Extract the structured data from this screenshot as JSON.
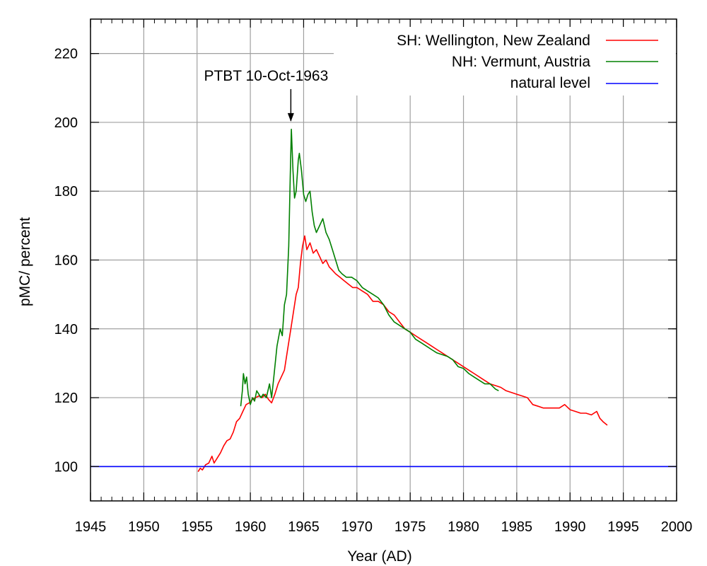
{
  "chart_data": {
    "type": "line",
    "xlabel": "Year (AD)",
    "ylabel": "pMC/ percent",
    "xlim": [
      1945,
      2000
    ],
    "ylim": [
      90,
      230
    ],
    "x_ticks": [
      1945,
      1950,
      1955,
      1960,
      1965,
      1970,
      1975,
      1980,
      1985,
      1990,
      1995,
      2000
    ],
    "y_ticks": [
      100,
      120,
      140,
      160,
      180,
      200,
      220
    ],
    "grid": true,
    "legend_position": "top-right",
    "annotation": {
      "text": "PTBT 10-Oct-1963",
      "x": 1963.8,
      "y": 200
    },
    "series": [
      {
        "name": "SH: Wellington, New Zealand",
        "color": "#ff0000",
        "points": [
          [
            1955.1,
            98.5
          ],
          [
            1955.3,
            99.5
          ],
          [
            1955.5,
            99
          ],
          [
            1955.8,
            100.5
          ],
          [
            1956.1,
            101
          ],
          [
            1956.4,
            103
          ],
          [
            1956.6,
            101
          ],
          [
            1956.9,
            102.5
          ],
          [
            1957.2,
            104
          ],
          [
            1957.5,
            106
          ],
          [
            1957.8,
            107.5
          ],
          [
            1958.1,
            108
          ],
          [
            1958.4,
            110
          ],
          [
            1958.7,
            113
          ],
          [
            1959,
            114
          ],
          [
            1959.3,
            116
          ],
          [
            1959.6,
            118
          ],
          [
            1959.9,
            118.5
          ],
          [
            1960.2,
            119.5
          ],
          [
            1960.5,
            120
          ],
          [
            1960.8,
            120.5
          ],
          [
            1961.1,
            120
          ],
          [
            1961.4,
            121
          ],
          [
            1961.7,
            119.5
          ],
          [
            1962.0,
            118.5
          ],
          [
            1962.3,
            121
          ],
          [
            1962.6,
            124
          ],
          [
            1962.9,
            126
          ],
          [
            1963.2,
            128
          ],
          [
            1963.5,
            134
          ],
          [
            1963.8,
            140
          ],
          [
            1964.0,
            144
          ],
          [
            1964.3,
            150
          ],
          [
            1964.5,
            152
          ],
          [
            1964.7,
            159
          ],
          [
            1964.9,
            164
          ],
          [
            1965.1,
            167
          ],
          [
            1965.3,
            163
          ],
          [
            1965.6,
            165
          ],
          [
            1965.9,
            162
          ],
          [
            1966.2,
            163
          ],
          [
            1966.5,
            161
          ],
          [
            1966.8,
            159
          ],
          [
            1967.1,
            160
          ],
          [
            1967.4,
            158
          ],
          [
            1967.7,
            157
          ],
          [
            1968.0,
            156
          ],
          [
            1968.4,
            155
          ],
          [
            1968.8,
            154
          ],
          [
            1969.2,
            153
          ],
          [
            1969.6,
            152
          ],
          [
            1970.0,
            152
          ],
          [
            1970.5,
            151
          ],
          [
            1971.0,
            150
          ],
          [
            1971.5,
            148
          ],
          [
            1972.0,
            148
          ],
          [
            1972.5,
            147
          ],
          [
            1973.0,
            145
          ],
          [
            1973.5,
            144
          ],
          [
            1974.0,
            142
          ],
          [
            1974.5,
            140
          ],
          [
            1975.0,
            139
          ],
          [
            1975.5,
            138
          ],
          [
            1976.0,
            137
          ],
          [
            1976.5,
            136
          ],
          [
            1977.0,
            135
          ],
          [
            1977.5,
            134
          ],
          [
            1978.0,
            133
          ],
          [
            1978.5,
            132
          ],
          [
            1979.0,
            131
          ],
          [
            1979.5,
            130
          ],
          [
            1980.0,
            129
          ],
          [
            1980.5,
            128
          ],
          [
            1981.0,
            127
          ],
          [
            1981.5,
            126
          ],
          [
            1982.0,
            125
          ],
          [
            1982.5,
            124
          ],
          [
            1983.0,
            123.5
          ],
          [
            1983.5,
            123
          ],
          [
            1984.0,
            122
          ],
          [
            1984.5,
            121.5
          ],
          [
            1985.0,
            121
          ],
          [
            1985.5,
            120.5
          ],
          [
            1986.0,
            120
          ],
          [
            1986.5,
            118
          ],
          [
            1987.0,
            117.5
          ],
          [
            1987.5,
            117
          ],
          [
            1988.0,
            117
          ],
          [
            1988.5,
            117
          ],
          [
            1989.0,
            117
          ],
          [
            1989.5,
            118
          ],
          [
            1990.0,
            116.5
          ],
          [
            1990.5,
            116
          ],
          [
            1991.0,
            115.5
          ],
          [
            1991.5,
            115.5
          ],
          [
            1992.0,
            115
          ],
          [
            1992.5,
            116
          ],
          [
            1992.8,
            114
          ],
          [
            1993.1,
            113
          ],
          [
            1993.5,
            112
          ]
        ]
      },
      {
        "name": "NH: Vermunt, Austria",
        "color": "#008000",
        "points": [
          [
            1959.1,
            117.5
          ],
          [
            1959.25,
            122
          ],
          [
            1959.35,
            127
          ],
          [
            1959.5,
            124
          ],
          [
            1959.65,
            126
          ],
          [
            1959.8,
            121
          ],
          [
            1960.0,
            118
          ],
          [
            1960.2,
            120
          ],
          [
            1960.4,
            119
          ],
          [
            1960.6,
            122
          ],
          [
            1960.8,
            121
          ],
          [
            1961.0,
            120
          ],
          [
            1961.2,
            121
          ],
          [
            1961.5,
            120
          ],
          [
            1961.8,
            124
          ],
          [
            1962.0,
            120
          ],
          [
            1962.2,
            126
          ],
          [
            1962.5,
            135
          ],
          [
            1962.8,
            140
          ],
          [
            1963.0,
            138
          ],
          [
            1963.2,
            147
          ],
          [
            1963.4,
            150
          ],
          [
            1963.6,
            164
          ],
          [
            1963.75,
            185
          ],
          [
            1963.85,
            198
          ],
          [
            1964.0,
            186
          ],
          [
            1964.15,
            178
          ],
          [
            1964.3,
            180
          ],
          [
            1964.5,
            189
          ],
          [
            1964.6,
            191
          ],
          [
            1964.8,
            186
          ],
          [
            1965.0,
            179
          ],
          [
            1965.2,
            177
          ],
          [
            1965.4,
            179
          ],
          [
            1965.6,
            180
          ],
          [
            1965.8,
            174
          ],
          [
            1966.0,
            170
          ],
          [
            1966.2,
            168
          ],
          [
            1966.5,
            170
          ],
          [
            1966.8,
            172
          ],
          [
            1967.1,
            168
          ],
          [
            1967.4,
            166
          ],
          [
            1967.7,
            163
          ],
          [
            1968.0,
            160
          ],
          [
            1968.3,
            157
          ],
          [
            1968.6,
            156
          ],
          [
            1969.0,
            155
          ],
          [
            1969.5,
            155
          ],
          [
            1970.0,
            154
          ],
          [
            1970.5,
            152
          ],
          [
            1971.0,
            151
          ],
          [
            1971.5,
            150
          ],
          [
            1972.0,
            149
          ],
          [
            1972.5,
            147
          ],
          [
            1973.0,
            144
          ],
          [
            1973.5,
            142
          ],
          [
            1974.0,
            141
          ],
          [
            1974.5,
            140
          ],
          [
            1975.0,
            139
          ],
          [
            1975.5,
            137
          ],
          [
            1976.0,
            136
          ],
          [
            1976.5,
            135
          ],
          [
            1977.0,
            134
          ],
          [
            1977.5,
            133
          ],
          [
            1978.0,
            132.5
          ],
          [
            1978.5,
            132
          ],
          [
            1979.0,
            131
          ],
          [
            1979.5,
            129
          ],
          [
            1980.0,
            128.5
          ],
          [
            1980.5,
            127
          ],
          [
            1981.0,
            126
          ],
          [
            1981.5,
            125
          ],
          [
            1982.0,
            124
          ],
          [
            1982.5,
            124
          ],
          [
            1983.0,
            122.5
          ],
          [
            1983.3,
            122
          ]
        ]
      },
      {
        "name": "natural level",
        "color": "#0000ff",
        "points": [
          [
            1945,
            100
          ],
          [
            2000,
            100
          ]
        ]
      }
    ]
  }
}
